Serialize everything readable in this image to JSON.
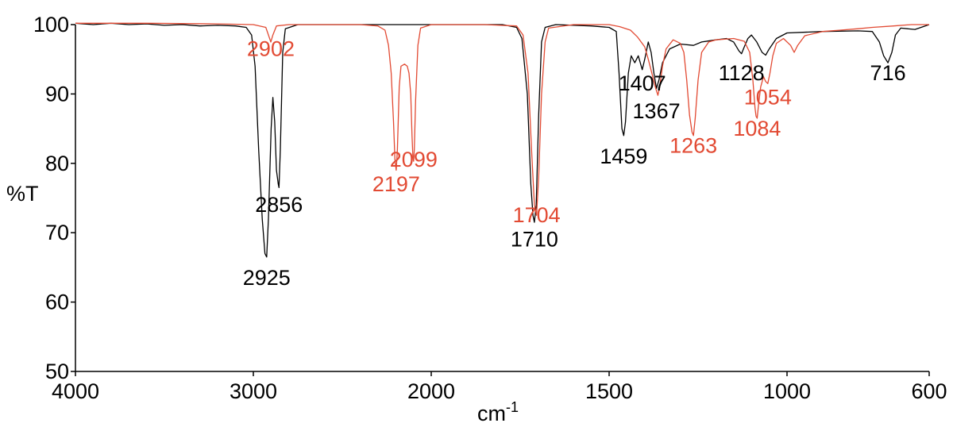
{
  "chart_data": {
    "type": "line",
    "xlabel": "cm",
    "xlabel_superscript": "-1",
    "ylabel": "%T",
    "xlim": [
      4000,
      600
    ],
    "ylim": [
      50,
      100
    ],
    "x_ticks": [
      "4000",
      "3000",
      "2000",
      "1500",
      "1000",
      "600"
    ],
    "x_tick_values": [
      4000,
      3000,
      2000,
      1500,
      1000,
      600
    ],
    "y_ticks": [
      "50",
      "60",
      "70",
      "80",
      "90",
      "100"
    ],
    "y_tick_values": [
      50,
      60,
      70,
      80,
      90,
      100
    ],
    "grid": false,
    "series": [
      {
        "color": "#000000",
        "baseline": 100,
        "points": [
          [
            4000,
            100.2
          ],
          [
            3900,
            100
          ],
          [
            3800,
            100.2
          ],
          [
            3700,
            100
          ],
          [
            3600,
            100.1
          ],
          [
            3500,
            99.9
          ],
          [
            3400,
            100
          ],
          [
            3300,
            99.8
          ],
          [
            3200,
            99.9
          ],
          [
            3100,
            99.8
          ],
          [
            3040,
            99.6
          ],
          [
            3010,
            98.5
          ],
          [
            2990,
            94
          ],
          [
            2970,
            82
          ],
          [
            2950,
            72
          ],
          [
            2935,
            67
          ],
          [
            2925,
            66.5
          ],
          [
            2915,
            72
          ],
          [
            2900,
            85
          ],
          [
            2890,
            89.5
          ],
          [
            2880,
            86
          ],
          [
            2870,
            79
          ],
          [
            2860,
            77
          ],
          [
            2856,
            76.5
          ],
          [
            2848,
            82
          ],
          [
            2835,
            96
          ],
          [
            2820,
            99.4
          ],
          [
            2750,
            100
          ],
          [
            2500,
            100
          ],
          [
            2200,
            100
          ],
          [
            2000,
            100
          ],
          [
            1800,
            100
          ],
          [
            1760,
            99.6
          ],
          [
            1745,
            98
          ],
          [
            1730,
            90
          ],
          [
            1720,
            77
          ],
          [
            1714,
            72.5
          ],
          [
            1710,
            71.5
          ],
          [
            1705,
            74
          ],
          [
            1698,
            87
          ],
          [
            1690,
            97.5
          ],
          [
            1680,
            99.6
          ],
          [
            1650,
            100
          ],
          [
            1550,
            99.8
          ],
          [
            1500,
            99.6
          ],
          [
            1480,
            99
          ],
          [
            1472,
            93
          ],
          [
            1464,
            85
          ],
          [
            1459,
            84
          ],
          [
            1454,
            86
          ],
          [
            1446,
            93
          ],
          [
            1438,
            95.5
          ],
          [
            1428,
            94.5
          ],
          [
            1418,
            95.5
          ],
          [
            1407,
            93.5
          ],
          [
            1400,
            95
          ],
          [
            1390,
            97.5
          ],
          [
            1382,
            96
          ],
          [
            1374,
            93
          ],
          [
            1367,
            90.8
          ],
          [
            1360,
            92
          ],
          [
            1350,
            94.5
          ],
          [
            1330,
            96.5
          ],
          [
            1300,
            97.2
          ],
          [
            1263,
            97
          ],
          [
            1240,
            97.5
          ],
          [
            1200,
            97.8
          ],
          [
            1170,
            98
          ],
          [
            1150,
            97.5
          ],
          [
            1135,
            96.2
          ],
          [
            1128,
            95.8
          ],
          [
            1120,
            96.8
          ],
          [
            1110,
            98
          ],
          [
            1100,
            98.5
          ],
          [
            1085,
            97.5
          ],
          [
            1070,
            96
          ],
          [
            1060,
            95.6
          ],
          [
            1050,
            96.5
          ],
          [
            1030,
            98
          ],
          [
            1000,
            98.8
          ],
          [
            900,
            99
          ],
          [
            800,
            99.1
          ],
          [
            760,
            99
          ],
          [
            740,
            97.5
          ],
          [
            728,
            95.5
          ],
          [
            716,
            94.5
          ],
          [
            705,
            96
          ],
          [
            695,
            98.5
          ],
          [
            680,
            99.5
          ],
          [
            640,
            99.3
          ],
          [
            600,
            100
          ]
        ]
      },
      {
        "color": "#e24a33",
        "baseline": 100,
        "points": [
          [
            4000,
            100.2
          ],
          [
            3600,
            100.2
          ],
          [
            3200,
            100.1
          ],
          [
            3000,
            100
          ],
          [
            2930,
            99.6
          ],
          [
            2915,
            98.5
          ],
          [
            2902,
            97.5
          ],
          [
            2890,
            98.5
          ],
          [
            2870,
            99.8
          ],
          [
            2800,
            100
          ],
          [
            2600,
            100
          ],
          [
            2400,
            100
          ],
          [
            2300,
            99.8
          ],
          [
            2260,
            99.2
          ],
          [
            2240,
            97
          ],
          [
            2225,
            93
          ],
          [
            2212,
            86
          ],
          [
            2204,
            80.5
          ],
          [
            2197,
            79
          ],
          [
            2190,
            82
          ],
          [
            2180,
            91
          ],
          [
            2170,
            94
          ],
          [
            2150,
            94.3
          ],
          [
            2135,
            94
          ],
          [
            2125,
            93
          ],
          [
            2115,
            90
          ],
          [
            2108,
            84
          ],
          [
            2103,
            81
          ],
          [
            2099,
            80.3
          ],
          [
            2095,
            82
          ],
          [
            2088,
            89
          ],
          [
            2075,
            97
          ],
          [
            2060,
            99.5
          ],
          [
            2000,
            100
          ],
          [
            1850,
            100
          ],
          [
            1760,
            99.8
          ],
          [
            1742,
            98.5
          ],
          [
            1728,
            93
          ],
          [
            1718,
            82
          ],
          [
            1710,
            74
          ],
          [
            1704,
            72.5
          ],
          [
            1698,
            78
          ],
          [
            1690,
            90
          ],
          [
            1680,
            97.5
          ],
          [
            1670,
            99.5
          ],
          [
            1600,
            100
          ],
          [
            1500,
            100
          ],
          [
            1470,
            99.7
          ],
          [
            1440,
            99.2
          ],
          [
            1420,
            98.2
          ],
          [
            1400,
            96.8
          ],
          [
            1390,
            95
          ],
          [
            1380,
            93
          ],
          [
            1370,
            91
          ],
          [
            1363,
            89.8
          ],
          [
            1358,
            91
          ],
          [
            1350,
            94
          ],
          [
            1340,
            96.5
          ],
          [
            1320,
            97.8
          ],
          [
            1300,
            97.3
          ],
          [
            1290,
            96
          ],
          [
            1282,
            92
          ],
          [
            1274,
            87
          ],
          [
            1267,
            84.5
          ],
          [
            1263,
            84
          ],
          [
            1258,
            86.5
          ],
          [
            1250,
            92
          ],
          [
            1240,
            96
          ],
          [
            1220,
            97.5
          ],
          [
            1200,
            97.8
          ],
          [
            1150,
            98
          ],
          [
            1120,
            97.6
          ],
          [
            1105,
            96
          ],
          [
            1096,
            92
          ],
          [
            1090,
            88
          ],
          [
            1087,
            86.8
          ],
          [
            1084,
            86.5
          ],
          [
            1080,
            88.5
          ],
          [
            1074,
            91
          ],
          [
            1066,
            92.5
          ],
          [
            1060,
            91.8
          ],
          [
            1054,
            91.5
          ],
          [
            1048,
            93
          ],
          [
            1040,
            95.5
          ],
          [
            1030,
            97.3
          ],
          [
            1010,
            98
          ],
          [
            990,
            97
          ],
          [
            980,
            96
          ],
          [
            970,
            97
          ],
          [
            950,
            98.4
          ],
          [
            900,
            99
          ],
          [
            850,
            99.2
          ],
          [
            800,
            99.4
          ],
          [
            760,
            99.6
          ],
          [
            700,
            99.8
          ],
          [
            650,
            100
          ],
          [
            600,
            100
          ]
        ]
      }
    ],
    "annotations": [
      {
        "text": "2902",
        "color": "#e24a33",
        "x": 2902,
        "y": 95.5
      },
      {
        "text": "2925",
        "color": "#000000",
        "x": 2925,
        "y": 62.5
      },
      {
        "text": "2856",
        "color": "#000000",
        "x": 2856,
        "y": 73
      },
      {
        "text": "2197",
        "color": "#e24a33",
        "x": 2197,
        "y": 76
      },
      {
        "text": "2099",
        "color": "#e24a33",
        "x": 2099,
        "y": 79.5
      },
      {
        "text": "1710",
        "color": "#000000",
        "x": 1710,
        "y": 68
      },
      {
        "text": "1704",
        "color": "#e24a33",
        "x": 1704,
        "y": 71.5
      },
      {
        "text": "1459",
        "color": "#000000",
        "x": 1459,
        "y": 80
      },
      {
        "text": "1407",
        "color": "#000000",
        "x": 1407,
        "y": 90.5
      },
      {
        "text": "1367",
        "color": "#000000",
        "x": 1367,
        "y": 86.5
      },
      {
        "text": "1263",
        "color": "#e24a33",
        "x": 1263,
        "y": 81.5
      },
      {
        "text": "1128",
        "color": "#000000",
        "x": 1128,
        "y": 92
      },
      {
        "text": "1084",
        "color": "#e24a33",
        "x": 1084,
        "y": 84
      },
      {
        "text": "1054",
        "color": "#e24a33",
        "x": 1054,
        "y": 88.5
      },
      {
        "text": "716",
        "color": "#000000",
        "x": 716,
        "y": 92
      }
    ]
  }
}
